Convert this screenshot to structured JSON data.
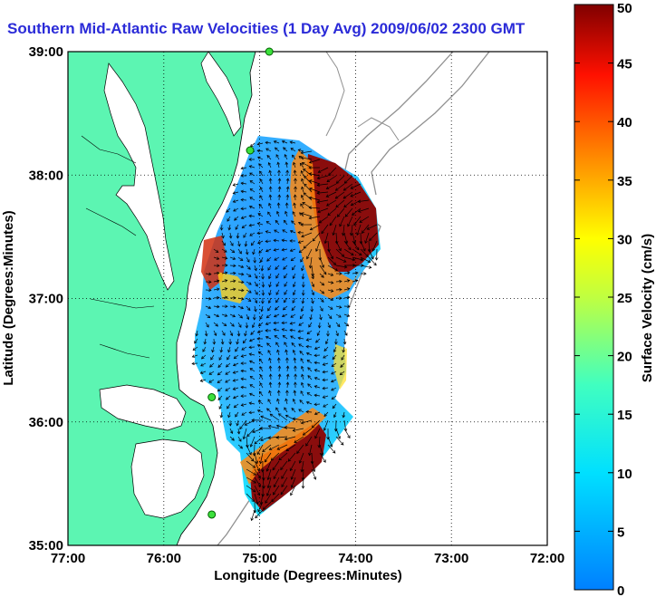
{
  "title": "Southern Mid-Atlantic Raw Velocities (1 Day Avg) 2009/06/02 2300 GMT",
  "map": {
    "xlabel": "Longitude (Degrees:Minutes)",
    "ylabel": "Latitude (Degrees:Minutes)",
    "x_ticks": [
      "77:00",
      "76:00",
      "75:00",
      "74:00",
      "73:00",
      "72:00"
    ],
    "y_ticks": [
      "39:00",
      "38:00",
      "37:00",
      "36:00",
      "35:00"
    ],
    "lon_range": [
      -77,
      -72
    ],
    "lat_range": [
      35,
      39
    ],
    "land_color": "#5cf5b2",
    "grid": "dotted"
  },
  "colorbar": {
    "label": "Surface Velocity (cm/s)",
    "ticks": [
      "0",
      "5",
      "10",
      "15",
      "20",
      "25",
      "30",
      "35",
      "40",
      "45",
      "50"
    ],
    "range": [
      0,
      50
    ],
    "colormap": "jet"
  },
  "stations": [
    {
      "lon": -74.9,
      "lat": 39.0
    },
    {
      "lon": -75.1,
      "lat": 38.2
    },
    {
      "lon": -75.5,
      "lat": 36.2
    },
    {
      "lon": -75.5,
      "lat": 35.25
    }
  ]
}
